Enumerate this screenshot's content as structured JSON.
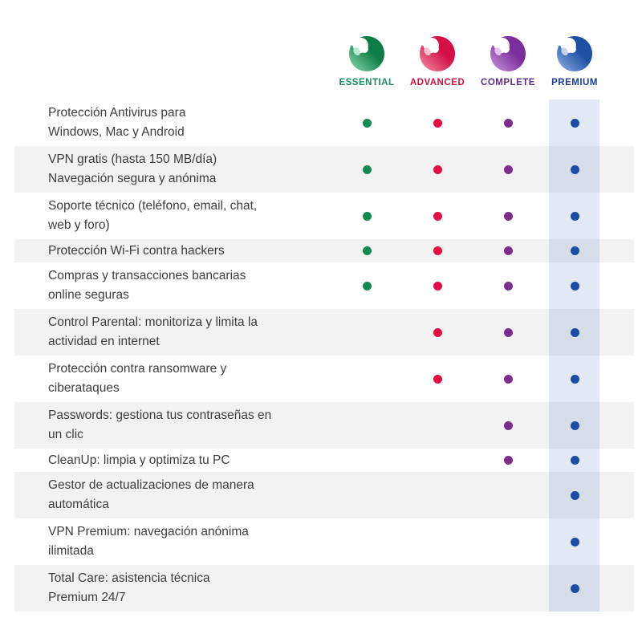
{
  "table": {
    "plans": [
      {
        "id": "essential",
        "label": "ESSENTIAL",
        "label_color": "#1e8a5f",
        "dot_color": "#15894f",
        "logo_light": "#8bdcae",
        "logo_dark": "#0e7c45",
        "logo_ear": "#b9ead0"
      },
      {
        "id": "advanced",
        "label": "ADVANCED",
        "label_color": "#d0103f",
        "dot_color": "#e00e43",
        "logo_light": "#f493a8",
        "logo_dark": "#d30f45",
        "logo_ear": "#f8c2ce"
      },
      {
        "id": "complete",
        "label": "COMPLETE",
        "label_color": "#5e2d85",
        "dot_color": "#7b2d8e",
        "logo_light": "#cc97dd",
        "logo_dark": "#7c2f9c",
        "logo_ear": "#e3c4ee"
      },
      {
        "id": "premium",
        "label": "PREMIUM",
        "label_color": "#1c3e94",
        "dot_color": "#1c4da6",
        "logo_light": "#93b3e4",
        "logo_dark": "#1d4fa3",
        "logo_ear": "#c3d4f0"
      }
    ],
    "features": [
      {
        "text": "Protección Antivirus para\nWindows, Mac y Android",
        "included": [
          true,
          true,
          true,
          true
        ]
      },
      {
        "text": "VPN gratis (hasta 150 MB/día)\nNavegación segura y anónima",
        "included": [
          true,
          true,
          true,
          true
        ]
      },
      {
        "text": "Soporte técnico (teléfono, email, chat,\nweb y foro)",
        "included": [
          true,
          true,
          true,
          true
        ]
      },
      {
        "text": "Protección Wi-Fi contra hackers",
        "included": [
          true,
          true,
          true,
          true
        ]
      },
      {
        "text": "Compras y transacciones bancarias\nonline seguras",
        "included": [
          true,
          true,
          true,
          true
        ]
      },
      {
        "text": "Control Parental: monitoriza y limita la\nactividad en internet",
        "included": [
          false,
          true,
          true,
          true
        ]
      },
      {
        "text": "Protección contra ransomware y\nciberataques",
        "included": [
          false,
          true,
          true,
          true
        ]
      },
      {
        "text": "Passwords: gestiona tus contraseñas en\nun clic",
        "included": [
          false,
          false,
          true,
          true
        ]
      },
      {
        "text": "CleanUp: limpia y optimiza tu PC",
        "included": [
          false,
          false,
          true,
          true
        ]
      },
      {
        "text": "Gestor de actualizaciones de manera\nautomática",
        "included": [
          false,
          false,
          false,
          true
        ]
      },
      {
        "text": "VPN Premium: navegación anónima\nilimitada",
        "included": [
          false,
          false,
          false,
          true
        ]
      },
      {
        "text": "Total Care: asistencia técnica\nPremium 24/7",
        "included": [
          false,
          false,
          false,
          true
        ]
      }
    ],
    "highlight_band_color": "rgba(32, 80, 170, 0.13)",
    "row_alt_color": "#f2f2f2",
    "text_color": "#3d3d3d"
  }
}
